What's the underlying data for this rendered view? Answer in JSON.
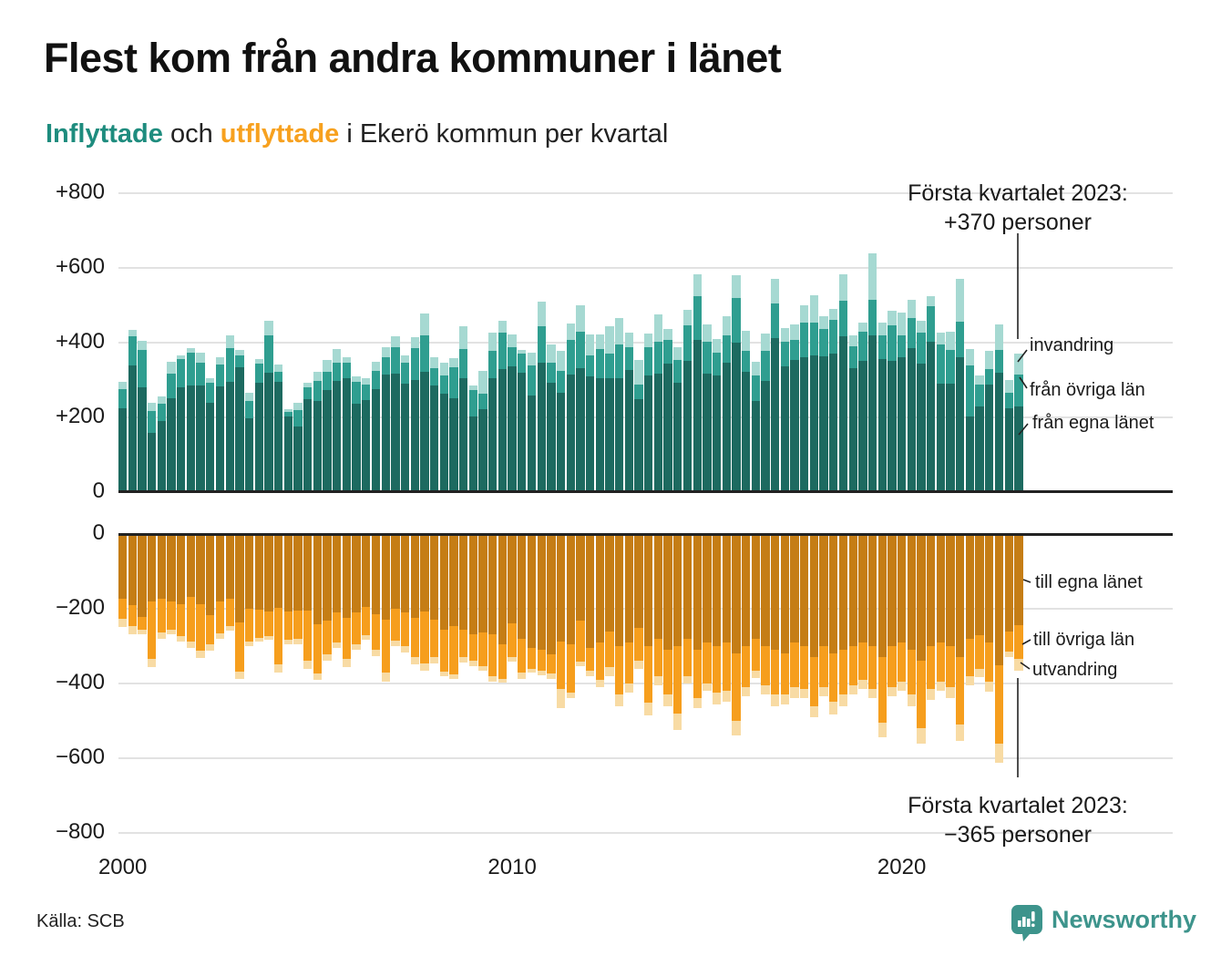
{
  "title": "Flest kom från andra kommuner i länet",
  "subtitle": {
    "inflow_word": "Inflyttade",
    "mid": " och ",
    "outflow_word": "utflyttade",
    "rest": " i Ekerö kommun per kvartal"
  },
  "source": "Källa: SCB",
  "logo": {
    "text": "Newsworthy",
    "chart-bubble-icon": "speech-bubble with white mini bar chart and exclamation mark"
  },
  "colors": {
    "inflow_egna": "#1d6a60",
    "inflow_ovriga": "#2f9e90",
    "invandring": "#a6d9d2",
    "outflow_egna": "#c57d15",
    "outflow_ovriga": "#f69e1d",
    "utvandring": "#f8dba4",
    "subtitle_inflow": "#1e8c7e",
    "subtitle_outflow": "#f7a11f",
    "grid": "#e2e2e2",
    "axis": "#222222",
    "logo_teal": "#3d948c"
  },
  "chart_data": {
    "type": "bar",
    "stacked": true,
    "x_axis": {
      "start": "2000-Q1",
      "end": "2023-Q1",
      "step": "quarter",
      "ticks": [
        {
          "label": "2000",
          "year": 2000
        },
        {
          "label": "2010",
          "year": 2010
        },
        {
          "label": "2020",
          "year": 2020
        }
      ]
    },
    "grid": true,
    "upper": {
      "direction": "positive",
      "ylim": [
        0,
        800
      ],
      "yticks": [
        {
          "label": "+800",
          "value": 800
        },
        {
          "label": "+600",
          "value": 600
        },
        {
          "label": "+400",
          "value": 400
        },
        {
          "label": "+200",
          "value": 200
        },
        {
          "label": "0",
          "value": 0
        }
      ],
      "series_labels": [
        "från egna länet",
        "från övriga län",
        "invandring"
      ],
      "annotation_line1": "Första kvartalet 2023:",
      "annotation_line2": "+370 personer",
      "annotation_value": 370,
      "values": [
        [
          225,
          50,
          20
        ],
        [
          340,
          78,
          15
        ],
        [
          280,
          100,
          25
        ],
        [
          158,
          60,
          20
        ],
        [
          190,
          47,
          20
        ],
        [
          250,
          67,
          33
        ],
        [
          280,
          77,
          10
        ],
        [
          285,
          88,
          13
        ],
        [
          286,
          60,
          28
        ],
        [
          238,
          54,
          12
        ],
        [
          284,
          58,
          20
        ],
        [
          296,
          90,
          33
        ],
        [
          333,
          33,
          15
        ],
        [
          198,
          47,
          20
        ],
        [
          292,
          51,
          13
        ],
        [
          320,
          100,
          38
        ],
        [
          296,
          25,
          21
        ],
        [
          202,
          12,
          8
        ],
        [
          175,
          45,
          20
        ],
        [
          249,
          31,
          12
        ],
        [
          243,
          55,
          25
        ],
        [
          273,
          48,
          33
        ],
        [
          298,
          48,
          37
        ],
        [
          304,
          43,
          13
        ],
        [
          236,
          60,
          14
        ],
        [
          247,
          41,
          16
        ],
        [
          276,
          49,
          25
        ],
        [
          314,
          46,
          27
        ],
        [
          317,
          70,
          29
        ],
        [
          290,
          56,
          19
        ],
        [
          300,
          85,
          30
        ],
        [
          323,
          97,
          57
        ],
        [
          286,
          45,
          29
        ],
        [
          263,
          50,
          33
        ],
        [
          251,
          82,
          25
        ],
        [
          306,
          77,
          61
        ],
        [
          202,
          71,
          13
        ],
        [
          222,
          41,
          62
        ],
        [
          304,
          73,
          49
        ],
        [
          329,
          99,
          30
        ],
        [
          337,
          50,
          34
        ],
        [
          320,
          50,
          10
        ],
        [
          259,
          80,
          33
        ],
        [
          347,
          96,
          67
        ],
        [
          292,
          55,
          48
        ],
        [
          265,
          60,
          54
        ],
        [
          314,
          93,
          44
        ],
        [
          331,
          99,
          69
        ],
        [
          309,
          57,
          55
        ],
        [
          306,
          77,
          38
        ],
        [
          306,
          64,
          74
        ],
        [
          306,
          89,
          72
        ],
        [
          327,
          60,
          41
        ],
        [
          249,
          39,
          66
        ],
        [
          311,
          76,
          38
        ],
        [
          317,
          86,
          72
        ],
        [
          344,
          63,
          29
        ],
        [
          292,
          62,
          33
        ],
        [
          351,
          95,
          41
        ],
        [
          407,
          118,
          59
        ],
        [
          317,
          86,
          46
        ],
        [
          313,
          61,
          36
        ],
        [
          346,
          74,
          51
        ],
        [
          399,
          120,
          61
        ],
        [
          321,
          56,
          55
        ],
        [
          243,
          68,
          39
        ],
        [
          298,
          81,
          45
        ],
        [
          413,
          93,
          65
        ],
        [
          337,
          65,
          38
        ],
        [
          354,
          53,
          43
        ],
        [
          362,
          91,
          47
        ],
        [
          366,
          88,
          74
        ],
        [
          364,
          72,
          35
        ],
        [
          370,
          92,
          29
        ],
        [
          418,
          94,
          72
        ],
        [
          331,
          60,
          29
        ],
        [
          350,
          80,
          23
        ],
        [
          420,
          94,
          126
        ],
        [
          356,
          64,
          33
        ],
        [
          352,
          94,
          40
        ],
        [
          360,
          60,
          60
        ],
        [
          385,
          80,
          50
        ],
        [
          344,
          82,
          33
        ],
        [
          402,
          96,
          27
        ],
        [
          290,
          105,
          31
        ],
        [
          290,
          90,
          50
        ],
        [
          360,
          95,
          115
        ],
        [
          202,
          137,
          44
        ],
        [
          230,
          58,
          25
        ],
        [
          288,
          41,
          48
        ],
        [
          320,
          60,
          70
        ],
        [
          225,
          40,
          35
        ],
        [
          230,
          85,
          55
        ]
      ]
    },
    "lower": {
      "direction": "negative",
      "ylim": [
        -800,
        0
      ],
      "yticks": [
        {
          "label": "0",
          "value": 0
        },
        {
          "label": "−200",
          "value": 200
        },
        {
          "label": "−400",
          "value": 400
        },
        {
          "label": "−600",
          "value": 600
        },
        {
          "label": "−800",
          "value": 800
        }
      ],
      "series_labels": [
        "till egna länet",
        "till övriga län",
        "utvandring"
      ],
      "annotation_line1": "Första kvartalet 2023:",
      "annotation_line2": "−365 personer",
      "annotation_value": -365,
      "values": [
        [
          173,
          55,
          21
        ],
        [
          191,
          56,
          22
        ],
        [
          222,
          35,
          12
        ],
        [
          180,
          155,
          20
        ],
        [
          173,
          90,
          17
        ],
        [
          181,
          74,
          14
        ],
        [
          187,
          86,
          15
        ],
        [
          168,
          120,
          18
        ],
        [
          187,
          126,
          18
        ],
        [
          217,
          77,
          19
        ],
        [
          181,
          84,
          15
        ],
        [
          173,
          74,
          11
        ],
        [
          236,
          132,
          20
        ],
        [
          201,
          87,
          12
        ],
        [
          203,
          74,
          11
        ],
        [
          207,
          66,
          10
        ],
        [
          198,
          151,
          21
        ],
        [
          207,
          76,
          13
        ],
        [
          206,
          75,
          13
        ],
        [
          206,
          133,
          21
        ],
        [
          242,
          130,
          18
        ],
        [
          232,
          90,
          16
        ],
        [
          210,
          80,
          15
        ],
        [
          225,
          110,
          20
        ],
        [
          210,
          85,
          15
        ],
        [
          195,
          75,
          14
        ],
        [
          215,
          95,
          18
        ],
        [
          230,
          140,
          25
        ],
        [
          200,
          85,
          15
        ],
        [
          210,
          90,
          18
        ],
        [
          225,
          105,
          20
        ],
        [
          207,
          140,
          18
        ],
        [
          230,
          100,
          17
        ],
        [
          257,
          111,
          12
        ],
        [
          247,
          129,
          12
        ],
        [
          257,
          72,
          14
        ],
        [
          269,
          70,
          15
        ],
        [
          263,
          91,
          11
        ],
        [
          269,
          111,
          15
        ],
        [
          296,
          91,
          11
        ],
        [
          240,
          89,
          12
        ],
        [
          281,
          89,
          17
        ],
        [
          306,
          54,
          12
        ],
        [
          310,
          55,
          14
        ],
        [
          323,
          51,
          14
        ],
        [
          288,
          127,
          50
        ],
        [
          294,
          131,
          14
        ],
        [
          232,
          109,
          13
        ],
        [
          306,
          60,
          14
        ],
        [
          290,
          100,
          20
        ],
        [
          260,
          95,
          25
        ],
        [
          300,
          130,
          30
        ],
        [
          290,
          110,
          25
        ],
        [
          250,
          90,
          20
        ],
        [
          300,
          150,
          35
        ],
        [
          280,
          100,
          25
        ],
        [
          310,
          120,
          30
        ],
        [
          300,
          180,
          45
        ],
        [
          280,
          100,
          20
        ],
        [
          310,
          130,
          25
        ],
        [
          290,
          110,
          20
        ],
        [
          300,
          125,
          30
        ],
        [
          290,
          130,
          30
        ],
        [
          320,
          180,
          40
        ],
        [
          300,
          110,
          25
        ],
        [
          280,
          85,
          20
        ],
        [
          300,
          105,
          25
        ],
        [
          310,
          120,
          30
        ],
        [
          320,
          110,
          25
        ],
        [
          290,
          120,
          30
        ],
        [
          300,
          115,
          25
        ],
        [
          330,
          130,
          30
        ],
        [
          300,
          110,
          25
        ],
        [
          320,
          130,
          33
        ],
        [
          310,
          120,
          30
        ],
        [
          300,
          105,
          25
        ],
        [
          290,
          100,
          25
        ],
        [
          300,
          115,
          25
        ],
        [
          330,
          175,
          40
        ],
        [
          300,
          110,
          25
        ],
        [
          290,
          105,
          25
        ],
        [
          310,
          120,
          30
        ],
        [
          340,
          180,
          41
        ],
        [
          300,
          115,
          30
        ],
        [
          290,
          105,
          25
        ],
        [
          300,
          110,
          28
        ],
        [
          330,
          180,
          43
        ],
        [
          280,
          100,
          25
        ],
        [
          270,
          90,
          22
        ],
        [
          290,
          105,
          28
        ],
        [
          350,
          210,
          51
        ],
        [
          260,
          55,
          15
        ],
        [
          245,
          88,
          32
        ]
      ]
    }
  }
}
